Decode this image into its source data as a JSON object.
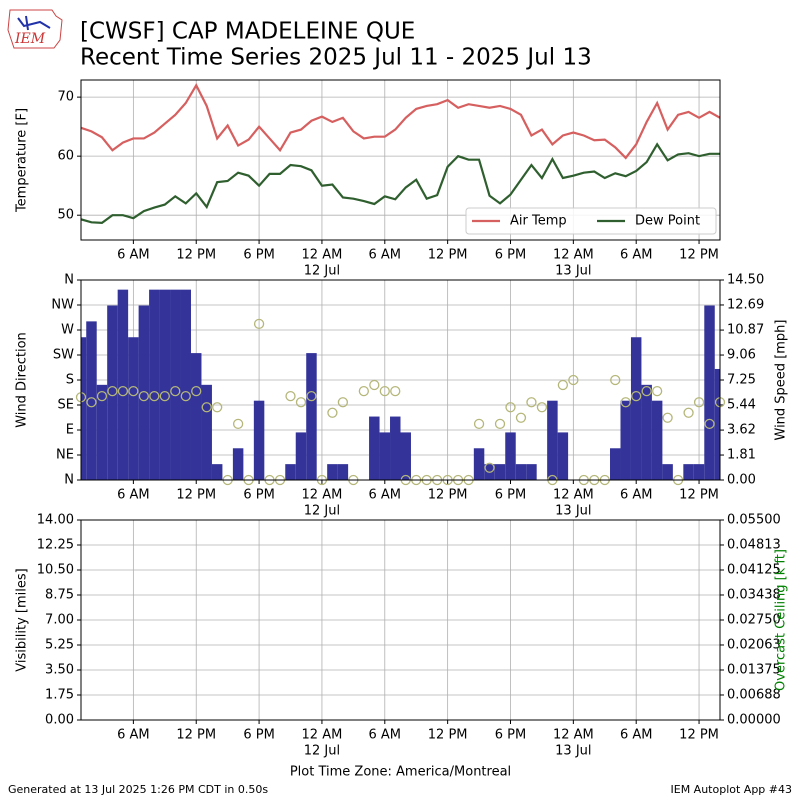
{
  "header": {
    "title": [
      "[CWSF] CAP MADELEINE  QUE",
      "Recent Time Series 2025 Jul 11 - 2025 Jul 13"
    ],
    "logo_text": "IEM"
  },
  "footer": {
    "left": "Generated at 13 Jul 2025 1:26 PM CDT in 0.50s",
    "right": "IEM Autoplot App #43"
  },
  "chart_data": [
    {
      "type": "line",
      "ylabel": "Temperature [F]",
      "xlim": [
        "2025-07-11 01:00",
        "2025-07-13 14:00"
      ],
      "xticks": [
        {
          "value": "2025-07-11 06:00",
          "label": "6 AM"
        },
        {
          "value": "2025-07-11 12:00",
          "label": "12 PM"
        },
        {
          "value": "2025-07-11 18:00",
          "label": "6 PM"
        },
        {
          "value": "2025-07-12 00:00",
          "label": "12 AM",
          "sublabel": "12 Jul"
        },
        {
          "value": "2025-07-12 06:00",
          "label": "6 AM"
        },
        {
          "value": "2025-07-12 12:00",
          "label": "12 PM"
        },
        {
          "value": "2025-07-12 18:00",
          "label": "6 PM"
        },
        {
          "value": "2025-07-13 00:00",
          "label": "12 AM",
          "sublabel": "13 Jul"
        },
        {
          "value": "2025-07-13 06:00",
          "label": "6 AM"
        },
        {
          "value": "2025-07-13 12:00",
          "label": "12 PM"
        }
      ],
      "ylim": [
        45.8,
        72.9
      ],
      "yticks": [
        50,
        60,
        70
      ],
      "grid": true,
      "legend": "lower right",
      "x": [
        "2025-07-11 01:00",
        "2025-07-11 02:00",
        "2025-07-11 03:00",
        "2025-07-11 04:00",
        "2025-07-11 05:00",
        "2025-07-11 06:00",
        "2025-07-11 07:00",
        "2025-07-11 08:00",
        "2025-07-11 09:00",
        "2025-07-11 10:00",
        "2025-07-11 11:00",
        "2025-07-11 12:00",
        "2025-07-11 13:00",
        "2025-07-11 14:00",
        "2025-07-11 15:00",
        "2025-07-11 16:00",
        "2025-07-11 17:00",
        "2025-07-11 18:00",
        "2025-07-11 19:00",
        "2025-07-11 20:00",
        "2025-07-11 21:00",
        "2025-07-11 22:00",
        "2025-07-11 23:00",
        "2025-07-12 00:00",
        "2025-07-12 01:00",
        "2025-07-12 02:00",
        "2025-07-12 03:00",
        "2025-07-12 04:00",
        "2025-07-12 05:00",
        "2025-07-12 06:00",
        "2025-07-12 07:00",
        "2025-07-12 08:00",
        "2025-07-12 09:00",
        "2025-07-12 10:00",
        "2025-07-12 11:00",
        "2025-07-12 12:00",
        "2025-07-12 13:00",
        "2025-07-12 14:00",
        "2025-07-12 15:00",
        "2025-07-12 16:00",
        "2025-07-12 17:00",
        "2025-07-12 18:00",
        "2025-07-12 19:00",
        "2025-07-12 20:00",
        "2025-07-12 21:00",
        "2025-07-12 22:00",
        "2025-07-12 23:00",
        "2025-07-13 00:00",
        "2025-07-13 01:00",
        "2025-07-13 02:00",
        "2025-07-13 03:00",
        "2025-07-13 04:00",
        "2025-07-13 05:00",
        "2025-07-13 06:00",
        "2025-07-13 07:00",
        "2025-07-13 08:00",
        "2025-07-13 09:00",
        "2025-07-13 10:00",
        "2025-07-13 11:00",
        "2025-07-13 12:00",
        "2025-07-13 13:00",
        "2025-07-13 14:00"
      ],
      "series": [
        {
          "name": "Air Temp",
          "color": "#d65f5f",
          "values": [
            64.8,
            64.2,
            63.2,
            61,
            62.3,
            63,
            63,
            64,
            65.5,
            67,
            69,
            72,
            68.5,
            63,
            65.2,
            61.8,
            62.8,
            65,
            63,
            61,
            64,
            64.5,
            66,
            66.7,
            65.8,
            66.5,
            64.2,
            63,
            63.3,
            63.3,
            64.5,
            66.5,
            68,
            68.5,
            68.8,
            69.5,
            68.2,
            68.8,
            68.5,
            68.2,
            68.5,
            68,
            67,
            63.5,
            64.5,
            62,
            63.5,
            64,
            63.5,
            62.7,
            62.8,
            61.5,
            59.7,
            62,
            65.8,
            69,
            64.5,
            67,
            67.5,
            66.5,
            67.5,
            66.5
          ]
        },
        {
          "name": "Dew Point",
          "color": "#2f5f2f",
          "values": [
            49.3,
            48.8,
            48.7,
            50,
            50,
            49.5,
            50.7,
            51.3,
            51.8,
            53.2,
            52,
            53.7,
            51.4,
            55.6,
            55.8,
            57.2,
            56.7,
            55,
            57,
            57,
            58.5,
            58.3,
            57.6,
            55,
            55.2,
            53,
            52.8,
            52.4,
            51.9,
            53.2,
            52.7,
            54.7,
            56,
            52.8,
            53.4,
            58.2,
            60,
            59.4,
            59.4,
            53.3,
            52,
            53.5,
            56,
            58.5,
            56.3,
            59.5,
            56.3,
            56.7,
            57.2,
            57.4,
            56.3,
            57.1,
            56.6,
            57.5,
            59,
            62,
            59.3,
            60.3,
            60.5,
            60,
            60.4,
            60.4
          ]
        }
      ]
    },
    {
      "type": "bar",
      "ylabel": "Wind Direction",
      "y2label": "Wind Speed [mph]",
      "xlim": [
        "2025-07-11 01:00",
        "2025-07-13 14:00"
      ],
      "xticks": [
        {
          "value": "2025-07-11 06:00",
          "label": "6 AM"
        },
        {
          "value": "2025-07-11 12:00",
          "label": "12 PM"
        },
        {
          "value": "2025-07-11 18:00",
          "label": "6 PM"
        },
        {
          "value": "2025-07-12 00:00",
          "label": "12 AM",
          "sublabel": "12 Jul"
        },
        {
          "value": "2025-07-12 06:00",
          "label": "6 AM"
        },
        {
          "value": "2025-07-12 12:00",
          "label": "12 PM"
        },
        {
          "value": "2025-07-12 18:00",
          "label": "6 PM"
        },
        {
          "value": "2025-07-13 00:00",
          "label": "12 AM",
          "sublabel": "13 Jul"
        },
        {
          "value": "2025-07-13 06:00",
          "label": "6 AM"
        },
        {
          "value": "2025-07-13 12:00",
          "label": "12 PM"
        }
      ],
      "ylim": [
        0,
        360
      ],
      "yticks": [
        {
          "value": 0,
          "label": "N"
        },
        {
          "value": 45,
          "label": "NE"
        },
        {
          "value": 90,
          "label": "E"
        },
        {
          "value": 135,
          "label": "SE"
        },
        {
          "value": 180,
          "label": "S"
        },
        {
          "value": 225,
          "label": "SW"
        },
        {
          "value": 270,
          "label": "W"
        },
        {
          "value": 315,
          "label": "NW"
        },
        {
          "value": 360,
          "label": "N"
        }
      ],
      "y2lim": [
        0,
        14.5
      ],
      "y2ticks": [
        {
          "value": 0,
          "label": "0.00"
        },
        {
          "value": 1.81,
          "label": "1.81"
        },
        {
          "value": 3.62,
          "label": "3.62"
        },
        {
          "value": 5.44,
          "label": "5.44"
        },
        {
          "value": 7.25,
          "label": "7.25"
        },
        {
          "value": 9.06,
          "label": "9.06"
        },
        {
          "value": 10.87,
          "label": "10.87"
        },
        {
          "value": 12.69,
          "label": "12.69"
        },
        {
          "value": 14.5,
          "label": "14.50"
        }
      ],
      "grid": true,
      "x": [
        "2025-07-11 01:00",
        "2025-07-11 02:00",
        "2025-07-11 03:00",
        "2025-07-11 04:00",
        "2025-07-11 05:00",
        "2025-07-11 06:00",
        "2025-07-11 07:00",
        "2025-07-11 08:00",
        "2025-07-11 09:00",
        "2025-07-11 10:00",
        "2025-07-11 11:00",
        "2025-07-11 12:00",
        "2025-07-11 13:00",
        "2025-07-11 14:00",
        "2025-07-11 15:00",
        "2025-07-11 16:00",
        "2025-07-11 17:00",
        "2025-07-11 18:00",
        "2025-07-11 19:00",
        "2025-07-11 20:00",
        "2025-07-11 21:00",
        "2025-07-11 22:00",
        "2025-07-11 23:00",
        "2025-07-12 00:00",
        "2025-07-12 01:00",
        "2025-07-12 02:00",
        "2025-07-12 03:00",
        "2025-07-12 04:00",
        "2025-07-12 05:00",
        "2025-07-12 06:00",
        "2025-07-12 07:00",
        "2025-07-12 08:00",
        "2025-07-12 09:00",
        "2025-07-12 10:00",
        "2025-07-12 11:00",
        "2025-07-12 12:00",
        "2025-07-12 13:00",
        "2025-07-12 14:00",
        "2025-07-12 15:00",
        "2025-07-12 16:00",
        "2025-07-12 17:00",
        "2025-07-12 18:00",
        "2025-07-12 19:00",
        "2025-07-12 20:00",
        "2025-07-12 21:00",
        "2025-07-12 22:00",
        "2025-07-12 23:00",
        "2025-07-13 00:00",
        "2025-07-13 01:00",
        "2025-07-13 02:00",
        "2025-07-13 03:00",
        "2025-07-13 04:00",
        "2025-07-13 05:00",
        "2025-07-13 06:00",
        "2025-07-13 07:00",
        "2025-07-13 08:00",
        "2025-07-13 09:00",
        "2025-07-13 10:00",
        "2025-07-13 11:00",
        "2025-07-13 12:00",
        "2025-07-13 13:00",
        "2025-07-13 14:00"
      ],
      "series": [
        {
          "type": "bar",
          "axis": "y2",
          "color": "#333399",
          "values": [
            10.35,
            11.5,
            6.9,
            12.65,
            13.8,
            10.35,
            12.65,
            13.8,
            13.8,
            13.8,
            13.8,
            9.2,
            6.9,
            1.15,
            0,
            2.3,
            0,
            5.75,
            0,
            0,
            1.15,
            3.45,
            9.2,
            0,
            1.15,
            1.15,
            0,
            0,
            4.6,
            3.45,
            4.6,
            3.45,
            0,
            0,
            0,
            0,
            0,
            0,
            2.3,
            1.15,
            1.15,
            3.45,
            1.15,
            1.15,
            0,
            5.75,
            3.45,
            0,
            0,
            0,
            0,
            2.3,
            5.75,
            10.35,
            6.9,
            5.75,
            1.15,
            0,
            1.15,
            1.15,
            12.65,
            8.05
          ]
        },
        {
          "type": "scatter",
          "color": "#b5b77a",
          "values": [
            149,
            140,
            151,
            160,
            160,
            160,
            151,
            151,
            151,
            160,
            151,
            160,
            131,
            131,
            0,
            101,
            0,
            281,
            0,
            0,
            151,
            140,
            151,
            0,
            121,
            140,
            0,
            160,
            171,
            160,
            160,
            0,
            0,
            0,
            0,
            0,
            0,
            0,
            101,
            22,
            101,
            131,
            112,
            140,
            131,
            0,
            171,
            180,
            0,
            0,
            0,
            180,
            140,
            151,
            160,
            160,
            112,
            0,
            121,
            140,
            101,
            140
          ]
        }
      ]
    },
    {
      "type": "line",
      "ylabel": "Visibility [miles]",
      "y2label": "Overcast Ceiling [k ft]",
      "y2label_color": "#008000",
      "xlabel": "Plot Time Zone: America/Montreal",
      "xlim": [
        "2025-07-11 01:00",
        "2025-07-13 14:00"
      ],
      "xticks": [
        {
          "value": "2025-07-11 06:00",
          "label": "6 AM"
        },
        {
          "value": "2025-07-11 12:00",
          "label": "12 PM"
        },
        {
          "value": "2025-07-11 18:00",
          "label": "6 PM"
        },
        {
          "value": "2025-07-12 00:00",
          "label": "12 AM",
          "sublabel": "12 Jul"
        },
        {
          "value": "2025-07-12 06:00",
          "label": "6 AM"
        },
        {
          "value": "2025-07-12 12:00",
          "label": "12 PM"
        },
        {
          "value": "2025-07-12 18:00",
          "label": "6 PM"
        },
        {
          "value": "2025-07-13 00:00",
          "label": "12 AM",
          "sublabel": "13 Jul"
        },
        {
          "value": "2025-07-13 06:00",
          "label": "6 AM"
        },
        {
          "value": "2025-07-13 12:00",
          "label": "12 PM"
        }
      ],
      "ylim": [
        0,
        14
      ],
      "yticks": [
        {
          "value": 0,
          "label": "0.00"
        },
        {
          "value": 1.75,
          "label": "1.75"
        },
        {
          "value": 3.5,
          "label": "3.50"
        },
        {
          "value": 5.25,
          "label": "5.25"
        },
        {
          "value": 7,
          "label": "7.00"
        },
        {
          "value": 8.75,
          "label": "8.75"
        },
        {
          "value": 10.5,
          "label": "10.50"
        },
        {
          "value": 12.25,
          "label": "12.25"
        },
        {
          "value": 14,
          "label": "14.00"
        }
      ],
      "y2lim": [
        0,
        0.055
      ],
      "y2ticks": [
        {
          "value": 0,
          "label": "0.00000"
        },
        {
          "value": 0.00688,
          "label": "0.00688"
        },
        {
          "value": 0.01375,
          "label": "0.01375"
        },
        {
          "value": 0.02063,
          "label": "0.02063"
        },
        {
          "value": 0.0275,
          "label": "0.02750"
        },
        {
          "value": 0.03438,
          "label": "0.03438"
        },
        {
          "value": 0.04125,
          "label": "0.04125"
        },
        {
          "value": 0.04813,
          "label": "0.04813"
        },
        {
          "value": 0.055,
          "label": "0.05500"
        }
      ],
      "grid": true
    }
  ]
}
